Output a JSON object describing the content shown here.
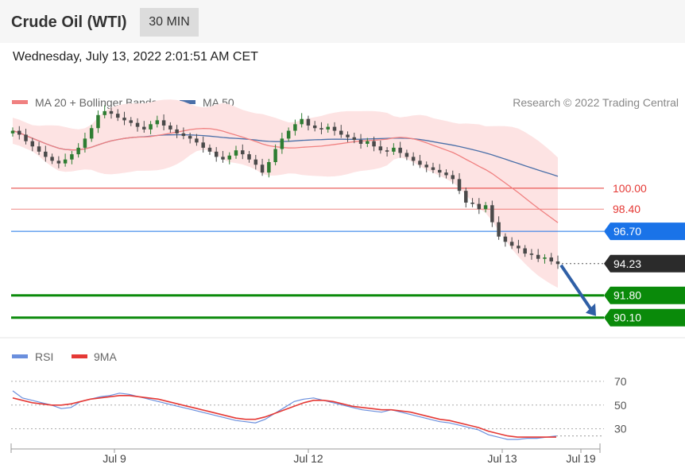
{
  "header": {
    "title": "Crude Oil (WTI)",
    "interval": "30 MIN"
  },
  "datetime": "Wednesday, July 13, 2022 2:01:51 AM CET",
  "legend": {
    "ma20": "MA 20 + Bollinger Bands",
    "ma50": "MA 50",
    "credit": "Research © 2022 Trading Central",
    "rsi": "RSI",
    "rsi_ma": "9MA"
  },
  "colors": {
    "ma20": "#f08080",
    "ma50": "#4a6fa8",
    "band": "#fde3e3",
    "bull": "#2e7d32",
    "bear": "#4a4a4a",
    "resistance": "#e53935",
    "pivot": "#1a73e8",
    "support": "#0a8a0a",
    "current": "#2b2b2b",
    "arrow": "#2f5fa6",
    "rsi": "#6a8fdd",
    "rsi_ma": "#e53935"
  },
  "chart_data": [
    {
      "type": "candlestick",
      "title": "Crude Oil (WTI)",
      "interval": "30 MIN",
      "ylim": [
        88.5,
        106.5
      ],
      "x_labels": [
        "Jul 9",
        "Jul 12",
        "Jul 13",
        "Jul 19"
      ],
      "close": [
        104.4,
        104.1,
        103.6,
        103.2,
        102.8,
        102.4,
        102.1,
        101.9,
        102.2,
        102.6,
        103.1,
        103.8,
        104.6,
        105.6,
        105.9,
        105.7,
        105.4,
        105.2,
        105.0,
        104.7,
        104.5,
        104.9,
        105.2,
        104.8,
        104.5,
        104.2,
        104.0,
        103.8,
        103.5,
        103.1,
        102.8,
        102.4,
        102.2,
        102.5,
        102.9,
        102.6,
        102.2,
        101.8,
        101.2,
        102.0,
        103.0,
        103.8,
        104.4,
        104.9,
        105.3,
        104.8,
        104.6,
        104.5,
        104.7,
        104.4,
        104.1,
        103.9,
        103.7,
        103.4,
        103.6,
        103.2,
        102.9,
        102.8,
        103.1,
        102.7,
        102.4,
        102.1,
        101.8,
        101.6,
        101.4,
        101.2,
        101.0,
        100.7,
        99.8,
        98.9,
        98.8,
        98.4,
        98.7,
        97.4,
        96.3,
        95.9,
        95.6,
        95.4,
        95.0,
        94.9,
        94.6,
        94.7,
        94.4,
        94.2
      ],
      "levels": [
        {
          "value": 100.0,
          "label": "100.00",
          "kind": "resistance"
        },
        {
          "value": 98.4,
          "label": "98.40",
          "kind": "resistance"
        },
        {
          "value": 96.7,
          "label": "96.70",
          "kind": "pivot"
        },
        {
          "value": 94.23,
          "label": "94.23",
          "kind": "current"
        },
        {
          "value": 91.8,
          "label": "91.80",
          "kind": "support"
        },
        {
          "value": 90.1,
          "label": "90.10",
          "kind": "support"
        }
      ],
      "forecast_arrow": {
        "from": 94.23,
        "to": 90.1
      }
    },
    {
      "type": "line",
      "series": [
        {
          "name": "RSI",
          "values": [
            62,
            56,
            54,
            52,
            50,
            47,
            48,
            53,
            55,
            57,
            58,
            60,
            59,
            57,
            55,
            53,
            51,
            49,
            47,
            45,
            43,
            41,
            39,
            37,
            36,
            35,
            38,
            43,
            48,
            53,
            55,
            56,
            54,
            52,
            50,
            48,
            46,
            45,
            44,
            46,
            44,
            42,
            40,
            38,
            36,
            35,
            33,
            31,
            29,
            25,
            23,
            21,
            21,
            22,
            22,
            23,
            24
          ]
        },
        {
          "name": "9MA",
          "values": [
            56,
            54,
            52,
            51,
            50,
            50,
            51,
            53,
            55,
            56,
            57,
            58,
            58,
            57,
            56,
            55,
            53,
            51,
            49,
            47,
            45,
            43,
            41,
            39,
            38,
            38,
            40,
            43,
            46,
            49,
            52,
            54,
            54,
            53,
            51,
            49,
            48,
            47,
            46,
            46,
            45,
            44,
            42,
            40,
            38,
            37,
            35,
            33,
            31,
            28,
            26,
            24,
            23,
            23,
            23,
            23,
            23
          ]
        }
      ],
      "y_ticks": [
        "70",
        "50",
        "30"
      ],
      "ylim": [
        15,
        80
      ]
    }
  ]
}
